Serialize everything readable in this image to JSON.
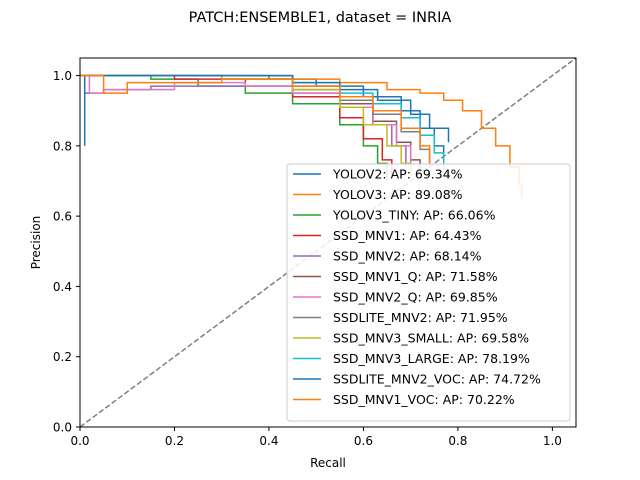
{
  "chart_data": {
    "type": "line",
    "title": "PATCH:ENSEMBLE1, dataset = INRIA",
    "xlabel": "Recall",
    "ylabel": "Precision",
    "xlim": [
      0.0,
      1.05
    ],
    "ylim": [
      0.0,
      1.05
    ],
    "xticks": [
      "0.0",
      "0.2",
      "0.4",
      "0.6",
      "0.8",
      "1.0"
    ],
    "yticks": [
      "0.0",
      "0.2",
      "0.4",
      "0.6",
      "0.8",
      "1.0"
    ],
    "grid": false,
    "legend_position": "lower-right",
    "reference_line": {
      "style": "dashed",
      "color": "#808080",
      "points": [
        [
          0,
          0
        ],
        [
          1.05,
          1.05
        ]
      ]
    },
    "series": [
      {
        "name": "YOLOV2: AP: 69.34%",
        "color": "#1f77b4",
        "points": [
          [
            0,
            1.0
          ],
          [
            0.3,
            1.0
          ],
          [
            0.4,
            0.99
          ],
          [
            0.5,
            0.97
          ],
          [
            0.6,
            0.94
          ],
          [
            0.68,
            0.9
          ],
          [
            0.72,
            0.85
          ],
          [
            0.75,
            0.8
          ],
          [
            0.77,
            0.77
          ]
        ]
      },
      {
        "name": "YOLOV3: AP: 89.08%",
        "color": "#ff7f0e",
        "points": [
          [
            0,
            1.0
          ],
          [
            0.3,
            1.0
          ],
          [
            0.45,
            0.99
          ],
          [
            0.55,
            0.98
          ],
          [
            0.65,
            0.96
          ],
          [
            0.72,
            0.95
          ],
          [
            0.77,
            0.93
          ],
          [
            0.81,
            0.9
          ],
          [
            0.85,
            0.85
          ],
          [
            0.88,
            0.8
          ],
          [
            0.91,
            0.74
          ],
          [
            0.93,
            0.69
          ],
          [
            0.935,
            0.65
          ]
        ]
      },
      {
        "name": "YOLOV3_TINY: AP: 66.06%",
        "color": "#2ca02c",
        "points": [
          [
            0,
            1.0
          ],
          [
            0.15,
            0.99
          ],
          [
            0.25,
            0.97
          ],
          [
            0.35,
            0.95
          ],
          [
            0.45,
            0.92
          ],
          [
            0.55,
            0.86
          ],
          [
            0.6,
            0.8
          ],
          [
            0.63,
            0.75
          ],
          [
            0.65,
            0.7
          ]
        ]
      },
      {
        "name": "SSD_MNV1: AP: 64.43%",
        "color": "#d62728",
        "points": [
          [
            0,
            1.0
          ],
          [
            0.2,
            0.99
          ],
          [
            0.35,
            0.97
          ],
          [
            0.45,
            0.94
          ],
          [
            0.55,
            0.88
          ],
          [
            0.6,
            0.82
          ],
          [
            0.64,
            0.76
          ],
          [
            0.66,
            0.71
          ]
        ]
      },
      {
        "name": "SSD_MNV2: AP: 68.14%",
        "color": "#9467bd",
        "points": [
          [
            0,
            1.0
          ],
          [
            0.01,
            0.95
          ],
          [
            0.05,
            0.96
          ],
          [
            0.15,
            0.97
          ],
          [
            0.3,
            0.97
          ],
          [
            0.45,
            0.95
          ],
          [
            0.55,
            0.92
          ],
          [
            0.62,
            0.86
          ],
          [
            0.66,
            0.8
          ],
          [
            0.69,
            0.74
          ]
        ]
      },
      {
        "name": "SSD_MNV1_Q: AP: 71.58%",
        "color": "#8c564b",
        "points": [
          [
            0,
            1.0
          ],
          [
            0.3,
            0.99
          ],
          [
            0.45,
            0.96
          ],
          [
            0.55,
            0.92
          ],
          [
            0.62,
            0.87
          ],
          [
            0.67,
            0.81
          ],
          [
            0.7,
            0.76
          ],
          [
            0.72,
            0.72
          ]
        ]
      },
      {
        "name": "SSD_MNV2_Q: AP: 69.85%",
        "color": "#e377c2",
        "points": [
          [
            0,
            1.0
          ],
          [
            0.02,
            0.95
          ],
          [
            0.05,
            0.96
          ],
          [
            0.2,
            0.98
          ],
          [
            0.35,
            0.97
          ],
          [
            0.45,
            0.95
          ],
          [
            0.55,
            0.91
          ],
          [
            0.62,
            0.86
          ],
          [
            0.67,
            0.8
          ],
          [
            0.7,
            0.75
          ]
        ]
      },
      {
        "name": "SSDLITE_MNV2: AP: 71.95%",
        "color": "#7f7f7f",
        "points": [
          [
            0,
            1.0
          ],
          [
            0.3,
            0.99
          ],
          [
            0.45,
            0.97
          ],
          [
            0.55,
            0.93
          ],
          [
            0.62,
            0.89
          ],
          [
            0.68,
            0.84
          ],
          [
            0.72,
            0.79
          ],
          [
            0.74,
            0.75
          ]
        ]
      },
      {
        "name": "SSD_MNV3_SMALL: AP: 69.58%",
        "color": "#bcbd22",
        "points": [
          [
            0,
            1.0
          ],
          [
            0.3,
            0.99
          ],
          [
            0.45,
            0.96
          ],
          [
            0.55,
            0.91
          ],
          [
            0.6,
            0.86
          ],
          [
            0.65,
            0.8
          ],
          [
            0.68,
            0.75
          ],
          [
            0.7,
            0.71
          ]
        ]
      },
      {
        "name": "SSD_MNV3_LARGE: AP: 78.19%",
        "color": "#17becf",
        "points": [
          [
            0,
            1.0
          ],
          [
            0.3,
            1.0
          ],
          [
            0.45,
            0.98
          ],
          [
            0.55,
            0.95
          ],
          [
            0.62,
            0.92
          ],
          [
            0.68,
            0.88
          ],
          [
            0.72,
            0.83
          ],
          [
            0.75,
            0.78
          ],
          [
            0.77,
            0.73
          ]
        ]
      },
      {
        "name": "SSDLITE_MNV2_VOC: AP: 74.72%",
        "color": "#1f77b4",
        "points": [
          [
            0.01,
            0.8
          ],
          [
            0.01,
            1.0
          ],
          [
            0.3,
            1.0
          ],
          [
            0.45,
            0.98
          ],
          [
            0.55,
            0.96
          ],
          [
            0.63,
            0.93
          ],
          [
            0.7,
            0.89
          ],
          [
            0.74,
            0.85
          ],
          [
            0.78,
            0.81
          ]
        ]
      },
      {
        "name": "SSD_MNV1_VOC: AP: 70.22%",
        "color": "#ff7f0e",
        "points": [
          [
            0,
            1.0
          ],
          [
            0.05,
            1.0
          ],
          [
            0.05,
            0.95
          ],
          [
            0.1,
            0.98
          ],
          [
            0.3,
            0.99
          ],
          [
            0.45,
            0.97
          ],
          [
            0.55,
            0.94
          ],
          [
            0.62,
            0.9
          ],
          [
            0.68,
            0.85
          ],
          [
            0.72,
            0.8
          ],
          [
            0.74,
            0.75
          ]
        ]
      }
    ]
  }
}
